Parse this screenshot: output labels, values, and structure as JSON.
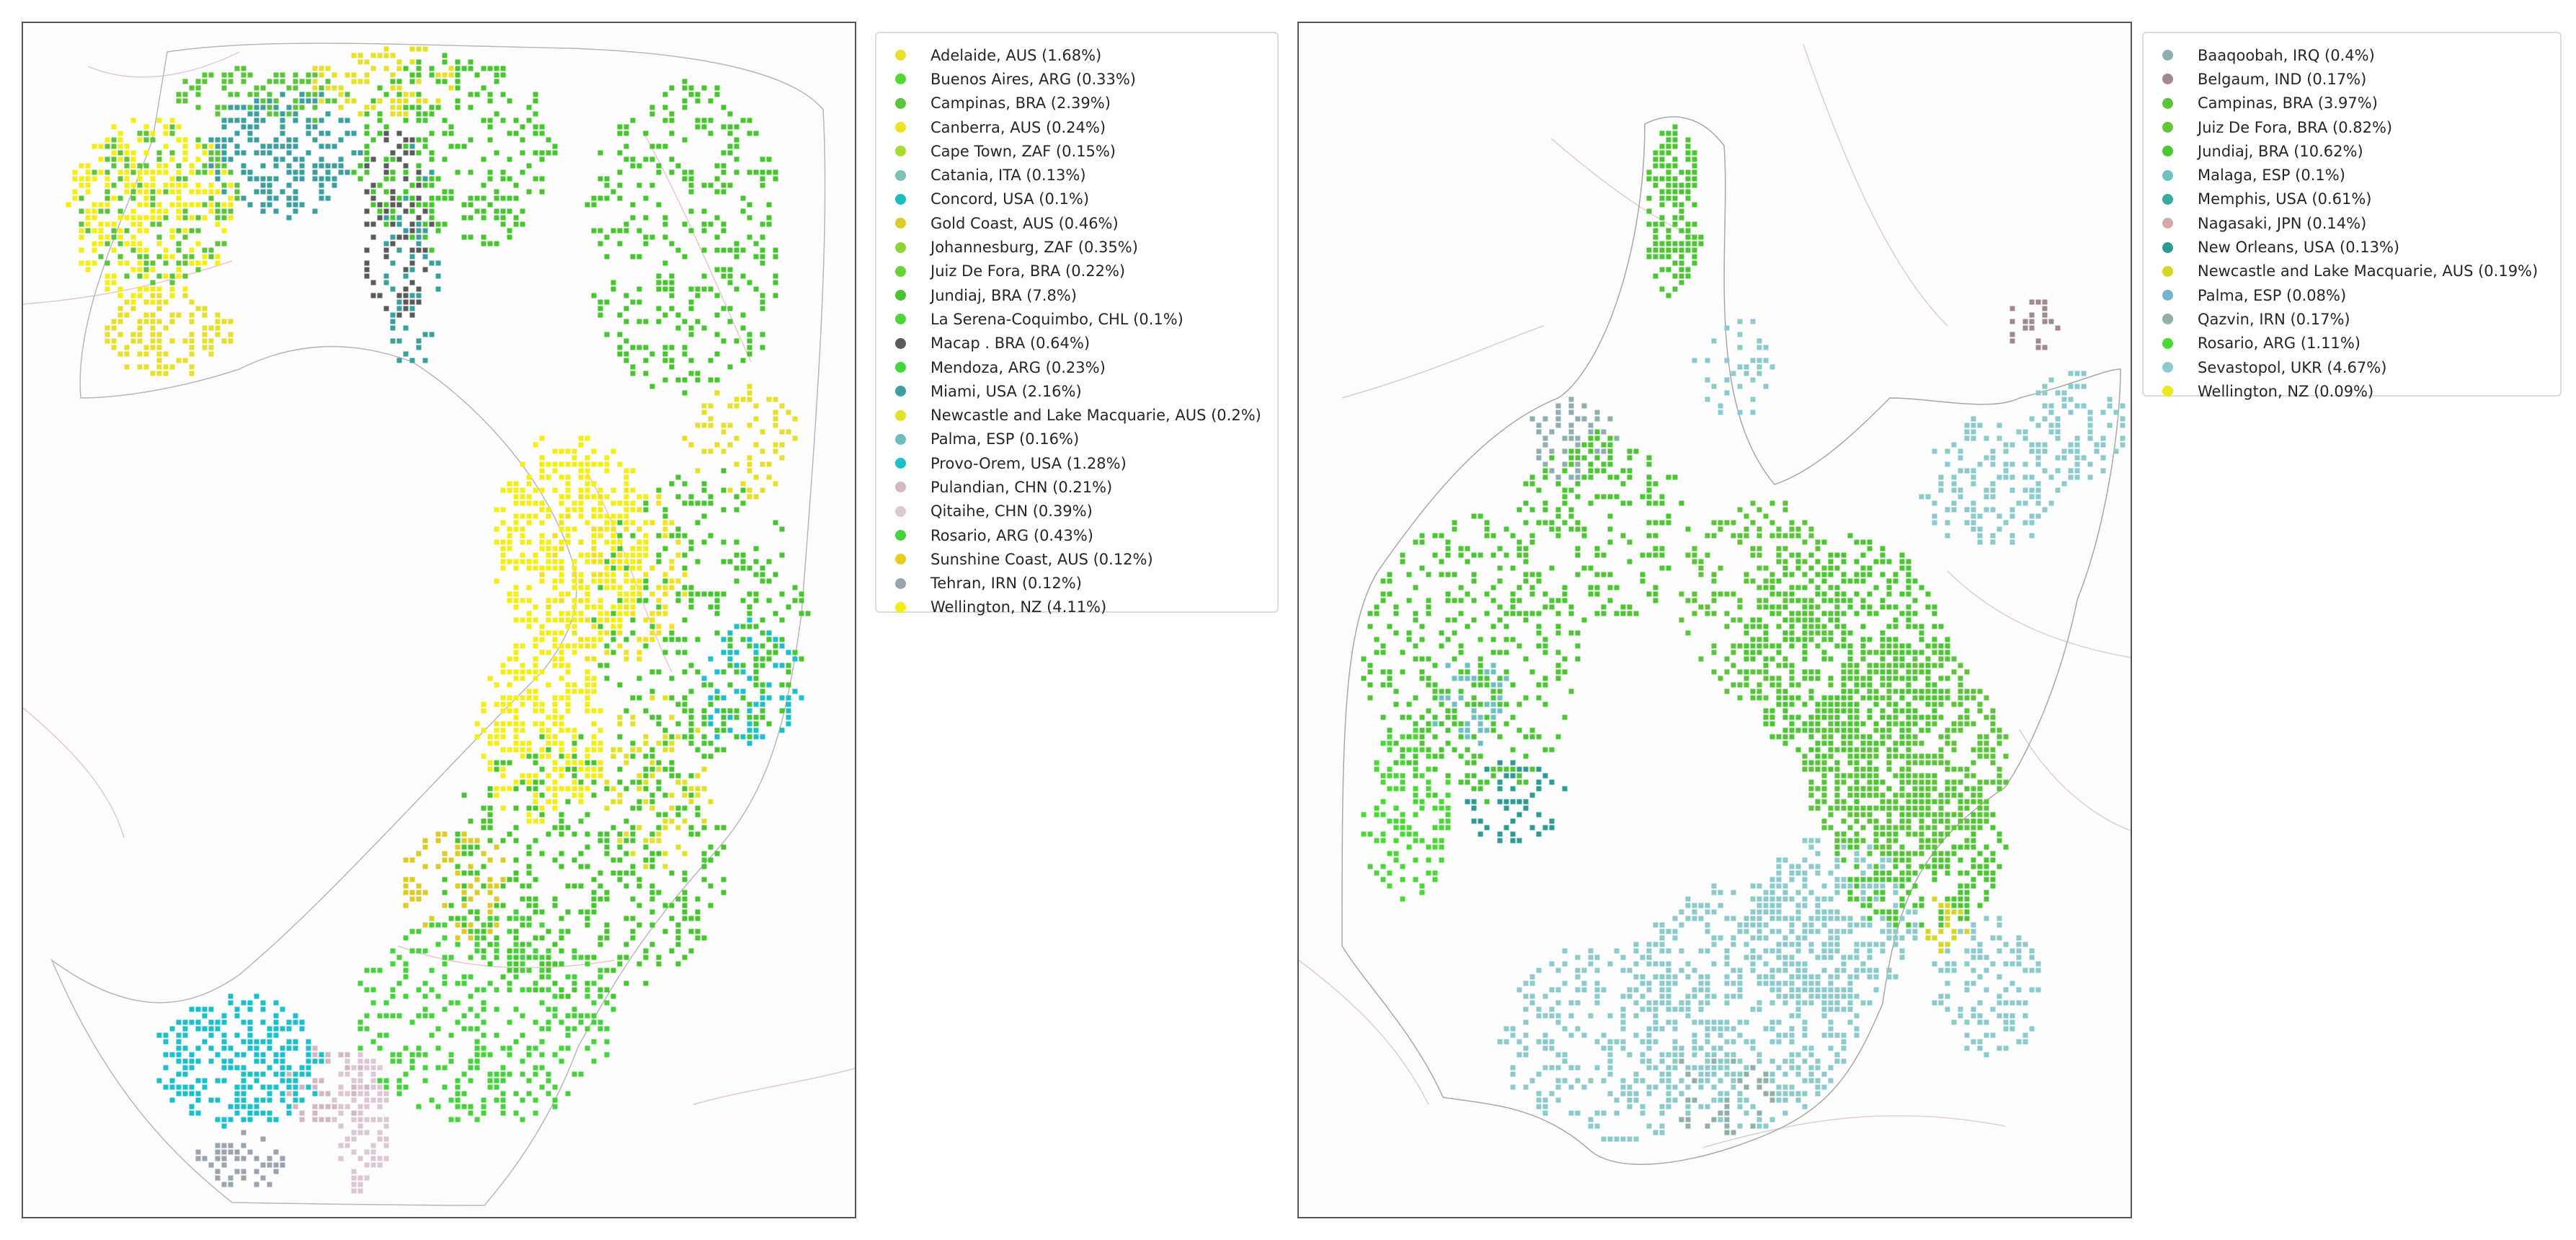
{
  "maps": [
    {
      "id": "left",
      "legend": [
        {
          "label": "Adelaide, AUS (1.68%)",
          "color": "#e6e02a",
          "share": 1.68
        },
        {
          "label": "Buenos Aires, ARG (0.33%)",
          "color": "#52d833",
          "share": 0.33
        },
        {
          "label": "Campinas, BRA (2.39%)",
          "color": "#5cc43b",
          "share": 2.39
        },
        {
          "label": "Canberra, AUS (0.24%)",
          "color": "#f0e223",
          "share": 0.24
        },
        {
          "label": "Cape Town, ZAF (0.15%)",
          "color": "#a6dd2e",
          "share": 0.15
        },
        {
          "label": "Catania, ITA (0.13%)",
          "color": "#7ebfb8",
          "share": 0.13
        },
        {
          "label": "Concord, USA (0.1%)",
          "color": "#1bbcbc",
          "share": 0.1
        },
        {
          "label": "Gold Coast, AUS (0.46%)",
          "color": "#dccc26",
          "share": 0.46
        },
        {
          "label": "Johannesburg, ZAF (0.35%)",
          "color": "#8ed432",
          "share": 0.35
        },
        {
          "label": "Juiz De Fora, BRA (0.22%)",
          "color": "#66d436",
          "share": 0.22
        },
        {
          "label": "Jundiaj, BRA (7.8%)",
          "color": "#48c630",
          "share": 7.8
        },
        {
          "label": "La Serena-Coquimbo, CHL (0.1%)",
          "color": "#4ed638",
          "share": 0.1
        },
        {
          "label": "Macap . BRA (0.64%)",
          "color": "#5b5b5b",
          "share": 0.64
        },
        {
          "label": "Mendoza, ARG (0.23%)",
          "color": "#40d83b",
          "share": 0.23
        },
        {
          "label": "Miami, USA (2.16%)",
          "color": "#3d9e9e",
          "share": 2.16
        },
        {
          "label": "Newcastle and Lake Macquarie, AUS (0.2%)",
          "color": "#e1e129",
          "share": 0.2
        },
        {
          "label": "Palma, ESP (0.16%)",
          "color": "#6ebebe",
          "share": 0.16
        },
        {
          "label": "Provo-Orem, USA (1.28%)",
          "color": "#1cc0c8",
          "share": 1.28
        },
        {
          "label": "Pulandian, CHN (0.21%)",
          "color": "#d2b8c0",
          "share": 0.21
        },
        {
          "label": "Qitaihe, CHN (0.39%)",
          "color": "#dcc8d4",
          "share": 0.39
        },
        {
          "label": "Rosario, ARG (0.43%)",
          "color": "#46d23c",
          "share": 0.43
        },
        {
          "label": "Sunshine Coast, AUS (0.12%)",
          "color": "#e8cc22",
          "share": 0.12
        },
        {
          "label": "Tehran, IRN (0.12%)",
          "color": "#9aa4ae",
          "share": 0.12
        },
        {
          "label": "Wellington, NZ (4.11%)",
          "color": "#f5ee14",
          "share": 4.11
        }
      ]
    },
    {
      "id": "right",
      "legend": [
        {
          "label": "Baaqoobah, IRQ (0.4%)",
          "color": "#8eaeb0",
          "share": 0.4
        },
        {
          "label": "Belgaum, IND (0.17%)",
          "color": "#a08a8c",
          "share": 0.17
        },
        {
          "label": "Campinas, BRA (3.97%)",
          "color": "#5cc43b",
          "share": 3.97
        },
        {
          "label": "Juiz De Fora, BRA (0.82%)",
          "color": "#66c43a",
          "share": 0.82
        },
        {
          "label": "Jundiaj, BRA (10.62%)",
          "color": "#4cc634",
          "share": 10.62
        },
        {
          "label": "Malaga, ESP (0.1%)",
          "color": "#6fc0c0",
          "share": 0.1
        },
        {
          "label": "Memphis, USA (0.61%)",
          "color": "#3aa8a0",
          "share": 0.61
        },
        {
          "label": "Nagasaki, JPN (0.14%)",
          "color": "#d2aaa8",
          "share": 0.14
        },
        {
          "label": "New Orleans, USA (0.13%)",
          "color": "#2a9c94",
          "share": 0.13
        },
        {
          "label": "Newcastle and Lake Macquarie, AUS (0.19%)",
          "color": "#d6d628",
          "share": 0.19
        },
        {
          "label": "Palma, ESP (0.08%)",
          "color": "#72b4cc",
          "share": 0.08
        },
        {
          "label": "Qazvin, IRN  (0.17%)",
          "color": "#92aeaa",
          "share": 0.17
        },
        {
          "label": "Rosario, ARG (1.11%)",
          "color": "#4ad836",
          "share": 1.11
        },
        {
          "label": "Sevastopol, UKR (4.67%)",
          "color": "#8ccacc",
          "share": 4.67
        },
        {
          "label": "Wellington, NZ (0.09%)",
          "color": "#eee81e",
          "share": 0.09
        }
      ]
    }
  ]
}
